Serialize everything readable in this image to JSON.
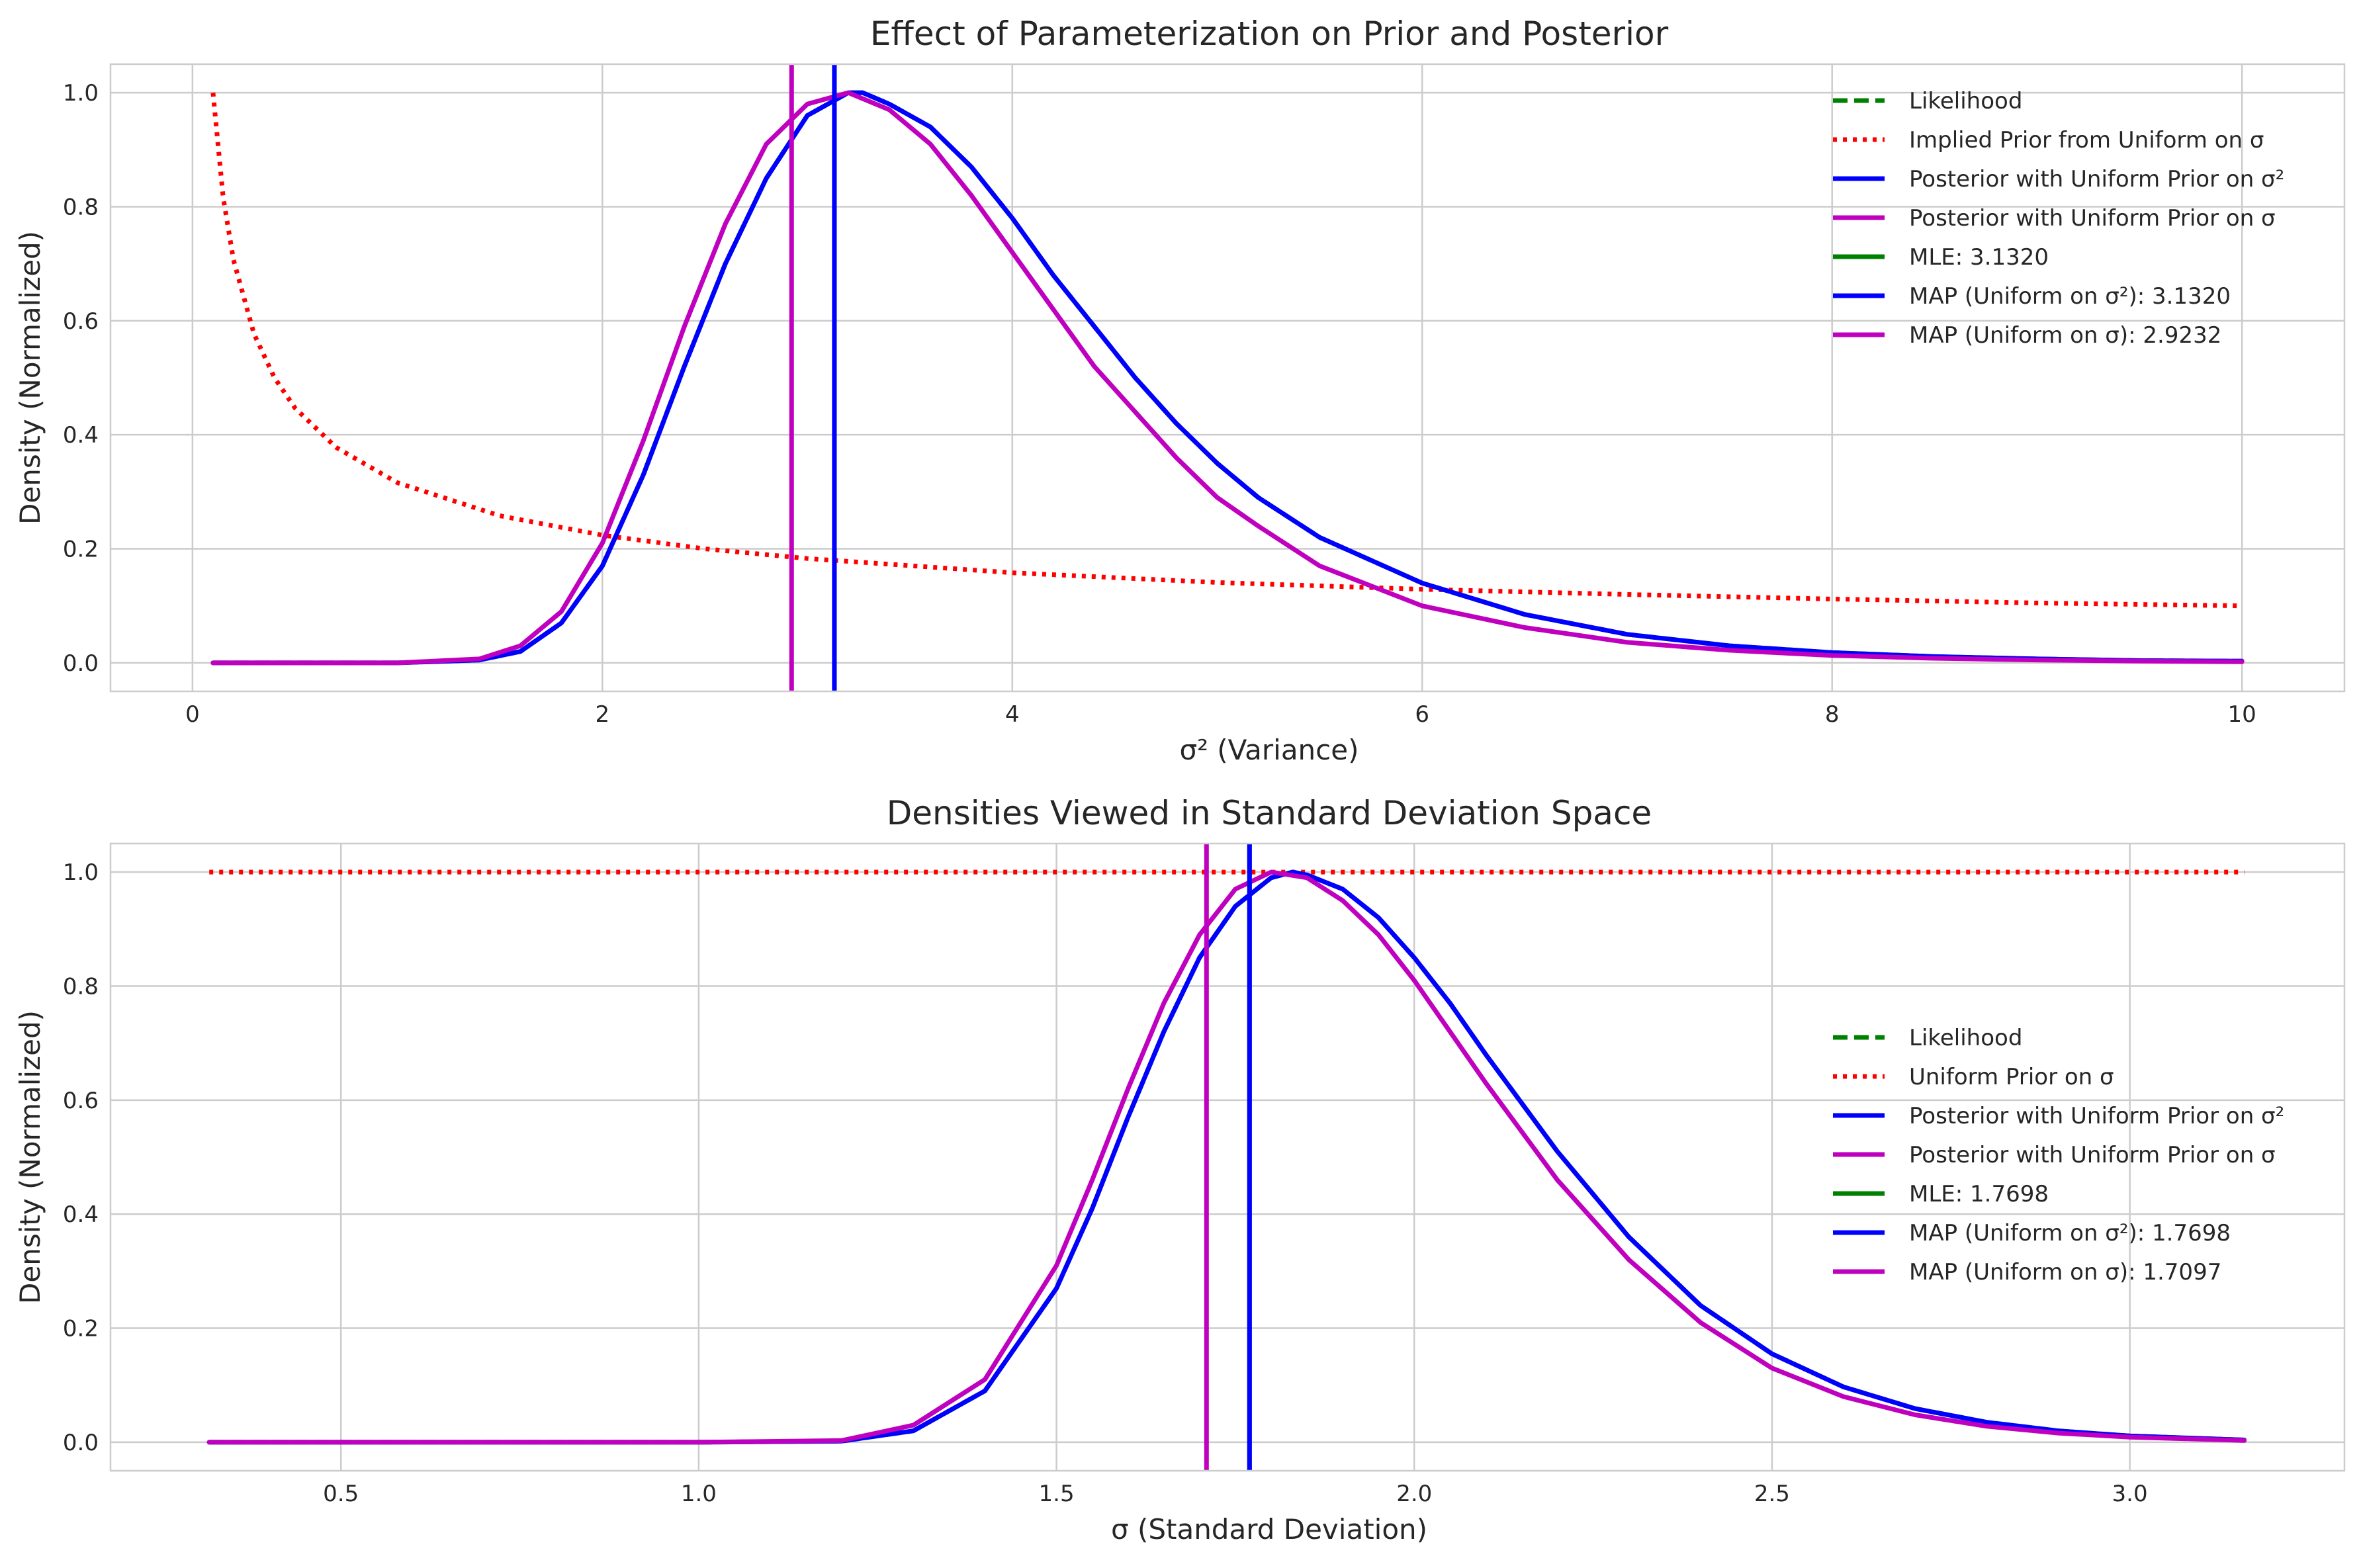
{
  "colors": {
    "likelihood": "#008000",
    "prior": "#ff0000",
    "post_var": "#0000ff",
    "post_sd": "#bf00bf",
    "grid": "#cccccc",
    "text": "#262626"
  },
  "chart_data": [
    {
      "type": "line",
      "title": "Effect of Parameterization on Prior and Posterior",
      "xlabel": "σ² (Variance)",
      "ylabel": "Density (Normalized)",
      "xlim": [
        -0.4,
        10.5
      ],
      "ylim": [
        -0.05,
        1.05
      ],
      "xticks": [
        0,
        2,
        4,
        6,
        8,
        10
      ],
      "xtick_labels": [
        "0",
        "2",
        "4",
        "6",
        "8",
        "10"
      ],
      "yticks": [
        0.0,
        0.2,
        0.4,
        0.6,
        0.8,
        1.0
      ],
      "ytick_labels": [
        "0.0",
        "0.2",
        "0.4",
        "0.6",
        "0.8",
        "1.0"
      ],
      "grid": true,
      "legend_position": "top-right",
      "series": [
        {
          "name": "Likelihood",
          "style": "dashed",
          "color": "#008000",
          "x": [
            0.1,
            1.0,
            1.4,
            1.6,
            1.8,
            2.0,
            2.2,
            2.4,
            2.6,
            2.8,
            3.0,
            3.2,
            3.27,
            3.4,
            3.6,
            3.8,
            4.0,
            4.2,
            4.4,
            4.6,
            4.8,
            5.0,
            5.2,
            5.5,
            6.0,
            6.5,
            7.0,
            7.5,
            8.0,
            8.5,
            9.0,
            9.5,
            10.0
          ],
          "y": [
            0.0,
            0.0,
            0.005,
            0.02,
            0.07,
            0.17,
            0.33,
            0.52,
            0.7,
            0.85,
            0.96,
            1.0,
            1.0,
            0.98,
            0.94,
            0.87,
            0.78,
            0.68,
            0.59,
            0.5,
            0.42,
            0.35,
            0.29,
            0.22,
            0.14,
            0.085,
            0.05,
            0.03,
            0.018,
            0.011,
            0.007,
            0.004,
            0.003
          ]
        },
        {
          "name": "Implied Prior from Uniform on σ",
          "style": "dotted",
          "color": "#ff0000",
          "x": [
            0.1,
            0.15,
            0.2,
            0.3,
            0.4,
            0.5,
            0.7,
            1.0,
            1.5,
            2.0,
            2.5,
            3.0,
            4.0,
            5.0,
            6.0,
            7.0,
            8.0,
            9.0,
            10.0
          ],
          "y": [
            1.0,
            0.816,
            0.707,
            0.577,
            0.5,
            0.447,
            0.378,
            0.316,
            0.258,
            0.224,
            0.2,
            0.183,
            0.158,
            0.141,
            0.129,
            0.12,
            0.112,
            0.105,
            0.1
          ]
        },
        {
          "name": "Posterior with Uniform Prior on σ²",
          "style": "solid",
          "color": "#0000ff",
          "x": [
            0.1,
            1.0,
            1.4,
            1.6,
            1.8,
            2.0,
            2.2,
            2.4,
            2.6,
            2.8,
            3.0,
            3.2,
            3.27,
            3.4,
            3.6,
            3.8,
            4.0,
            4.2,
            4.4,
            4.6,
            4.8,
            5.0,
            5.2,
            5.5,
            6.0,
            6.5,
            7.0,
            7.5,
            8.0,
            8.5,
            9.0,
            9.5,
            10.0
          ],
          "y": [
            0.0,
            0.0,
            0.005,
            0.02,
            0.07,
            0.17,
            0.33,
            0.52,
            0.7,
            0.85,
            0.96,
            1.0,
            1.0,
            0.98,
            0.94,
            0.87,
            0.78,
            0.68,
            0.59,
            0.5,
            0.42,
            0.35,
            0.29,
            0.22,
            0.14,
            0.085,
            0.05,
            0.03,
            0.018,
            0.011,
            0.007,
            0.004,
            0.003
          ]
        },
        {
          "name": "Posterior with Uniform Prior on σ",
          "style": "solid",
          "color": "#bf00bf",
          "x": [
            0.1,
            1.0,
            1.4,
            1.6,
            1.8,
            2.0,
            2.2,
            2.4,
            2.6,
            2.8,
            3.0,
            3.2,
            3.4,
            3.6,
            3.8,
            4.0,
            4.2,
            4.4,
            4.6,
            4.8,
            5.0,
            5.2,
            5.5,
            6.0,
            6.5,
            7.0,
            7.5,
            8.0,
            8.5,
            9.0,
            9.5,
            10.0
          ],
          "y": [
            0.0,
            0.0,
            0.007,
            0.03,
            0.09,
            0.21,
            0.39,
            0.59,
            0.77,
            0.91,
            0.98,
            1.0,
            0.97,
            0.91,
            0.82,
            0.72,
            0.62,
            0.52,
            0.44,
            0.36,
            0.29,
            0.24,
            0.17,
            0.1,
            0.062,
            0.036,
            0.022,
            0.013,
            0.008,
            0.005,
            0.003,
            0.002
          ]
        }
      ],
      "vlines": [
        {
          "name": "MLE: 3.1320",
          "x": 3.132,
          "color": "#008000"
        },
        {
          "name": "MAP (Uniform on σ²): 3.1320",
          "x": 3.132,
          "color": "#0000ff"
        },
        {
          "name": "MAP (Uniform on σ): 2.9232",
          "x": 2.9232,
          "color": "#bf00bf"
        }
      ]
    },
    {
      "type": "line",
      "title": "Densities Viewed in Standard Deviation Space",
      "xlabel": "σ (Standard Deviation)",
      "ylabel": "Density (Normalized)",
      "xlim": [
        0.178,
        3.3
      ],
      "ylim": [
        -0.05,
        1.05
      ],
      "xticks": [
        0.5,
        1.0,
        1.5,
        2.0,
        2.5,
        3.0
      ],
      "xtick_labels": [
        "0.5",
        "1.0",
        "1.5",
        "2.0",
        "2.5",
        "3.0"
      ],
      "yticks": [
        0.0,
        0.2,
        0.4,
        0.6,
        0.8,
        1.0
      ],
      "ytick_labels": [
        "0.0",
        "0.2",
        "0.4",
        "0.6",
        "0.8",
        "1.0"
      ],
      "grid": true,
      "legend_position": "center-right",
      "series": [
        {
          "name": "Likelihood",
          "style": "dashed",
          "color": "#008000",
          "x": [
            0.316,
            1.0,
            1.2,
            1.3,
            1.4,
            1.5,
            1.55,
            1.6,
            1.65,
            1.7,
            1.75,
            1.8,
            1.83,
            1.85,
            1.9,
            1.95,
            2.0,
            2.05,
            2.1,
            2.2,
            2.3,
            2.4,
            2.5,
            2.6,
            2.7,
            2.8,
            2.9,
            3.0,
            3.16
          ],
          "y": [
            0.0,
            0.0,
            0.002,
            0.02,
            0.09,
            0.27,
            0.41,
            0.57,
            0.72,
            0.85,
            0.94,
            0.99,
            1.0,
            0.995,
            0.97,
            0.92,
            0.85,
            0.77,
            0.68,
            0.51,
            0.36,
            0.24,
            0.155,
            0.097,
            0.059,
            0.035,
            0.02,
            0.011,
            0.004
          ]
        },
        {
          "name": "Uniform Prior on σ",
          "style": "dotted",
          "color": "#ff0000",
          "x": [
            0.316,
            3.16
          ],
          "y": [
            1.0,
            1.0
          ]
        },
        {
          "name": "Posterior with Uniform Prior on σ²",
          "style": "solid",
          "color": "#0000ff",
          "x": [
            0.316,
            1.0,
            1.2,
            1.3,
            1.4,
            1.5,
            1.55,
            1.6,
            1.65,
            1.7,
            1.75,
            1.8,
            1.83,
            1.85,
            1.9,
            1.95,
            2.0,
            2.05,
            2.1,
            2.2,
            2.3,
            2.4,
            2.5,
            2.6,
            2.7,
            2.8,
            2.9,
            3.0,
            3.16
          ],
          "y": [
            0.0,
            0.0,
            0.002,
            0.02,
            0.09,
            0.27,
            0.41,
            0.57,
            0.72,
            0.85,
            0.94,
            0.99,
            1.0,
            0.995,
            0.97,
            0.92,
            0.85,
            0.77,
            0.68,
            0.51,
            0.36,
            0.24,
            0.155,
            0.097,
            0.059,
            0.035,
            0.02,
            0.011,
            0.004
          ]
        },
        {
          "name": "Posterior with Uniform Prior on σ",
          "style": "solid",
          "color": "#bf00bf",
          "x": [
            0.316,
            1.0,
            1.2,
            1.3,
            1.4,
            1.5,
            1.55,
            1.6,
            1.65,
            1.7,
            1.75,
            1.8,
            1.85,
            1.9,
            1.95,
            2.0,
            2.05,
            2.1,
            2.2,
            2.3,
            2.4,
            2.5,
            2.6,
            2.7,
            2.8,
            2.9,
            3.0,
            3.16
          ],
          "y": [
            0.0,
            0.0,
            0.003,
            0.03,
            0.11,
            0.31,
            0.46,
            0.62,
            0.77,
            0.89,
            0.97,
            1.0,
            0.99,
            0.95,
            0.89,
            0.81,
            0.72,
            0.63,
            0.46,
            0.32,
            0.21,
            0.13,
            0.08,
            0.048,
            0.028,
            0.016,
            0.009,
            0.003
          ]
        }
      ],
      "vlines": [
        {
          "name": "MLE: 1.7698",
          "x": 1.7698,
          "color": "#008000"
        },
        {
          "name": "MAP (Uniform on σ²): 1.7698",
          "x": 1.7698,
          "color": "#0000ff"
        },
        {
          "name": "MAP (Uniform on σ): 1.7097",
          "x": 1.7097,
          "color": "#bf00bf"
        }
      ]
    }
  ]
}
